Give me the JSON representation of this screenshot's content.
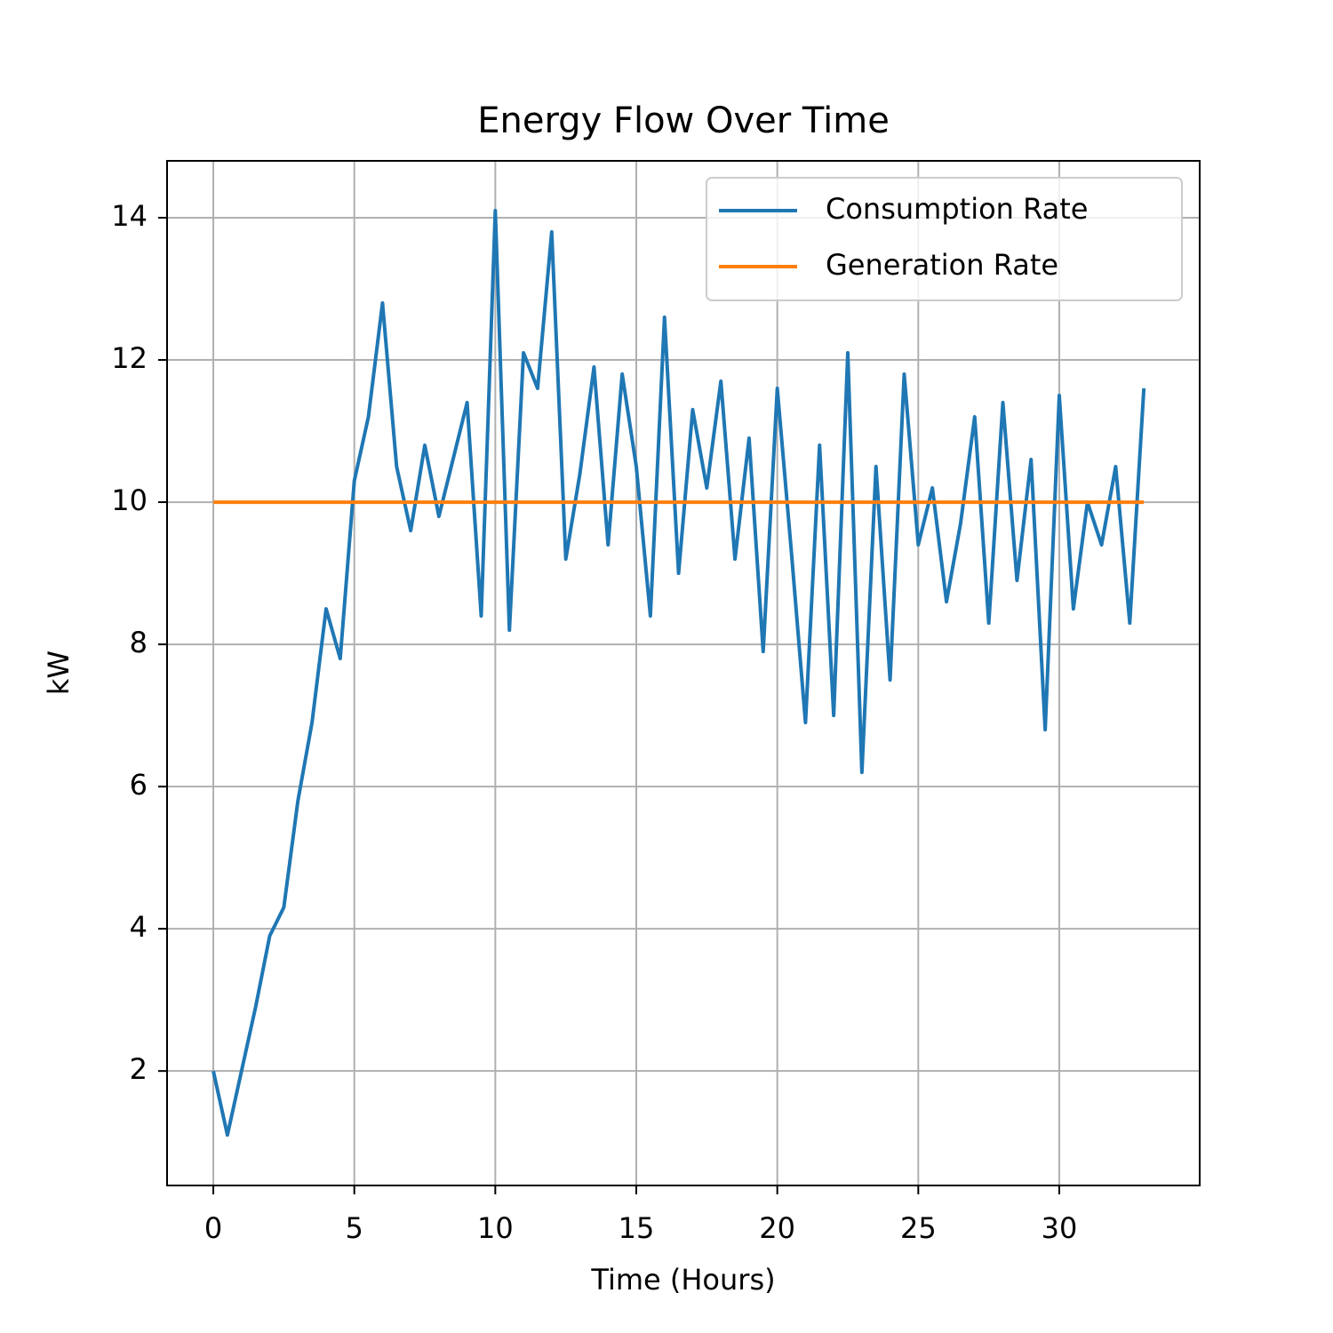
{
  "chart_data": {
    "type": "line",
    "title": "Energy Flow Over Time",
    "xlabel": "Time (Hours)",
    "ylabel": "kW",
    "x": [
      0,
      0.5,
      1,
      1.5,
      2,
      2.5,
      3,
      3.5,
      4,
      4.5,
      5,
      5.5,
      6,
      6.5,
      7,
      7.5,
      8,
      8.5,
      9,
      9.5,
      10,
      10.5,
      11,
      11.5,
      12,
      12.5,
      13,
      13.5,
      14,
      14.5,
      15,
      15.5,
      16,
      16.5,
      17,
      17.5,
      18,
      18.5,
      19,
      19.5,
      20,
      20.5,
      21,
      21.5,
      22,
      22.5,
      23,
      23.5,
      24,
      24.5,
      25,
      25.5,
      26,
      26.5,
      27,
      27.5,
      28,
      28.5,
      29,
      29.5,
      30,
      30.5,
      31,
      31.5,
      32,
      32.5,
      33
    ],
    "series": [
      {
        "name": "Consumption Rate",
        "color": "#1f77b4",
        "values": [
          2,
          1.1,
          2,
          2.9,
          3.9,
          4.3,
          5.8,
          6.9,
          8.5,
          7.8,
          10.3,
          11.2,
          12.8,
          10.5,
          9.6,
          10.8,
          9.8,
          10.6,
          11.4,
          8.4,
          14.1,
          8.2,
          12.1,
          11.6,
          13.8,
          9.2,
          10.4,
          11.9,
          9.4,
          11.8,
          10.5,
          8.4,
          12.6,
          9.0,
          11.3,
          10.2,
          11.7,
          9.2,
          10.9,
          7.9,
          11.6,
          9.3,
          6.9,
          10.8,
          7.0,
          12.1,
          6.2,
          10.5,
          7.5,
          11.8,
          9.4,
          10.2,
          8.6,
          9.7,
          11.2,
          8.3,
          11.4,
          8.9,
          10.6,
          6.8,
          11.5,
          8.5,
          10.0,
          9.4,
          10.5,
          8.3,
          11.6
        ]
      },
      {
        "name": "Generation Rate",
        "color": "#ff7f0e",
        "values": [
          10,
          10,
          10,
          10,
          10,
          10,
          10,
          10,
          10,
          10,
          10,
          10,
          10,
          10,
          10,
          10,
          10,
          10,
          10,
          10,
          10,
          10,
          10,
          10,
          10,
          10,
          10,
          10,
          10,
          10,
          10,
          10,
          10,
          10,
          10,
          10,
          10,
          10,
          10,
          10,
          10,
          10,
          10,
          10,
          10,
          10,
          10,
          10,
          10,
          10,
          10,
          10,
          10,
          10,
          10,
          10,
          10,
          10,
          10,
          10,
          10,
          10,
          10,
          10,
          10,
          10,
          10
        ]
      }
    ],
    "xlim": [
      -1.64,
      34.98
    ],
    "xticks": [
      0,
      5,
      10,
      15,
      20,
      25,
      30
    ],
    "ylim": [
      0.39,
      14.8
    ],
    "yticks": [
      2,
      4,
      6,
      8,
      10,
      12,
      14
    ],
    "grid": true,
    "legend": "upper right"
  }
}
